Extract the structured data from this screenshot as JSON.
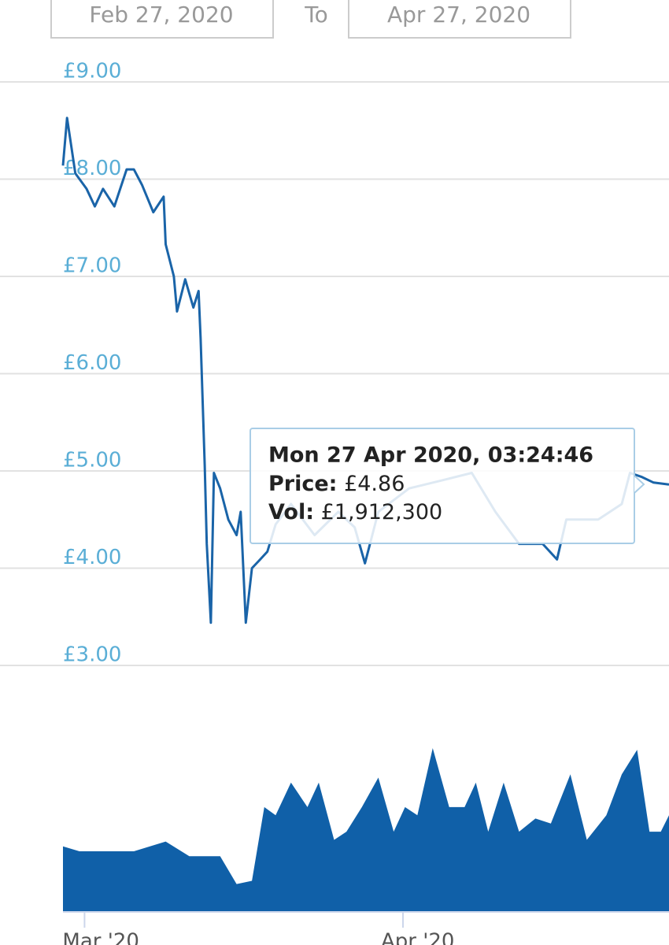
{
  "date_range": {
    "from": "Feb 27, 2020",
    "separator": "To",
    "to": "Apr 27, 2020"
  },
  "tooltip": {
    "title": "Mon 27 Apr 2020, 03:24:46",
    "price_label": "Price:",
    "price": "£4.86",
    "vol_label": "Vol:",
    "vol": "£1,912,300"
  },
  "chart_data": [
    {
      "type": "line",
      "color": "#1a64a8",
      "grid": true,
      "xlim": [
        0.9,
        59.9
      ],
      "ylim": [
        3,
        9
      ],
      "yticks": [
        {
          "value": 3,
          "label": "£3.00"
        },
        {
          "value": 4,
          "label": "£4.00"
        },
        {
          "value": 5,
          "label": "£5.00"
        },
        {
          "value": 6,
          "label": "£6.00"
        },
        {
          "value": 7,
          "label": "£7.00"
        },
        {
          "value": 8,
          "label": "£8.00"
        },
        {
          "value": 9,
          "label": "£9.00"
        }
      ],
      "x": [
        0.9,
        1.3,
        2.1,
        3.2,
        4.0,
        4.8,
        5.9,
        7.1,
        7.8,
        8.6,
        9.7,
        10.7,
        10.9,
        11.7,
        12.0,
        12.8,
        13.6,
        14.1,
        14.3,
        14.7,
        14.9,
        15.3,
        15.6,
        16.2,
        17.0,
        17.8,
        18.2,
        18.7,
        19.3,
        20.1,
        20.8,
        21.6,
        23.1,
        25.4,
        27.7,
        29.3,
        30.3,
        31.6,
        34.6,
        37.7,
        40.7,
        43.0,
        45.3,
        47.6,
        49.0,
        49.9,
        53.0,
        55.3,
        56.1,
        57.2,
        58.4,
        59.9
      ],
      "values": [
        8.14,
        8.63,
        8.06,
        7.9,
        7.72,
        7.9,
        7.72,
        8.1,
        8.1,
        7.94,
        7.66,
        7.82,
        7.33,
        7.0,
        6.64,
        6.97,
        6.68,
        6.85,
        6.36,
        5.06,
        4.25,
        3.44,
        4.98,
        4.82,
        4.5,
        4.34,
        4.58,
        3.44,
        4.0,
        4.09,
        4.17,
        4.45,
        4.66,
        4.34,
        4.58,
        4.42,
        4.05,
        4.58,
        4.82,
        4.9,
        4.98,
        4.58,
        4.25,
        4.25,
        4.09,
        4.5,
        4.5,
        4.66,
        4.98,
        4.94,
        4.88,
        4.86
      ]
    },
    {
      "type": "area",
      "color": "#1060a8",
      "xlim": [
        0.9,
        59.9
      ],
      "ylim": [
        0,
        100
      ],
      "xticks": [
        {
          "value": 3,
          "label": "Mar '20"
        },
        {
          "value": 34,
          "label": "Apr '20"
        }
      ],
      "x": [
        0.9,
        2.5,
        4.8,
        7.8,
        10.9,
        13.2,
        14.7,
        16.2,
        17.8,
        19.3,
        20.5,
        21.6,
        23.1,
        24.7,
        25.8,
        27.3,
        28.5,
        30.0,
        31.6,
        33.1,
        34.2,
        35.4,
        36.9,
        38.5,
        40.0,
        41.1,
        42.3,
        43.8,
        45.3,
        46.9,
        48.4,
        50.3,
        51.9,
        53.8,
        55.3,
        56.8,
        58.0,
        59.1,
        59.9
      ],
      "values": [
        40,
        37,
        37,
        37,
        43,
        34,
        34,
        34,
        17,
        19,
        64,
        59,
        79,
        64,
        79,
        44,
        49,
        64,
        82,
        49,
        64,
        59,
        100,
        64,
        64,
        79,
        49,
        79,
        49,
        57,
        54,
        84,
        44,
        59,
        84,
        99,
        49,
        49,
        59
      ]
    }
  ]
}
